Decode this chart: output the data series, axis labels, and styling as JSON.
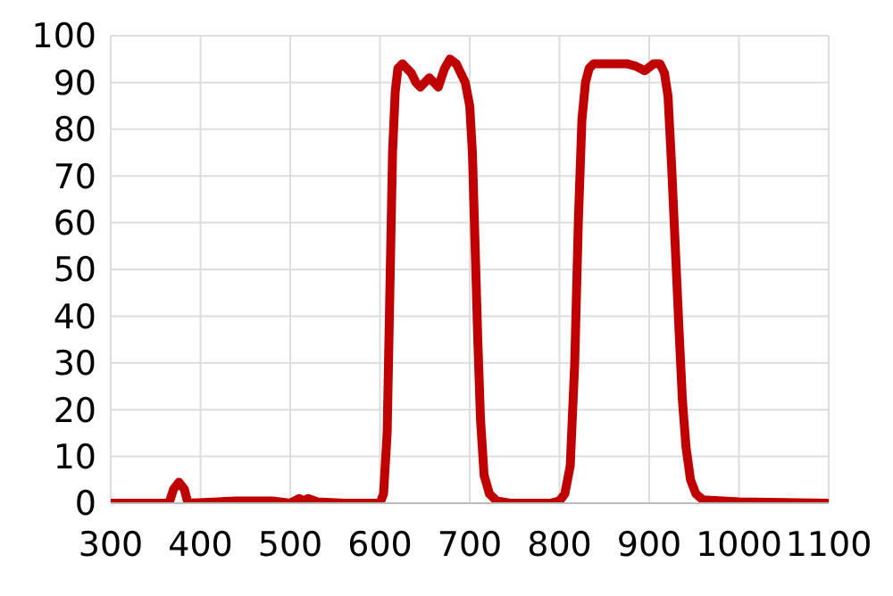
{
  "chart_data": {
    "type": "line",
    "x": [
      300,
      365,
      370,
      376,
      382,
      386,
      420,
      440,
      460,
      480,
      500,
      510,
      515,
      520,
      530,
      560,
      600,
      604,
      608,
      611,
      614,
      617,
      620,
      625,
      635,
      640,
      645,
      650,
      655,
      665,
      672,
      678,
      685,
      690,
      695,
      700,
      703,
      706,
      709,
      712,
      716,
      722,
      730,
      745,
      790,
      800,
      806,
      812,
      817,
      821,
      825,
      829,
      833,
      838,
      845,
      860,
      875,
      885,
      895,
      905,
      912,
      917,
      921,
      925,
      929,
      933,
      937,
      941,
      946,
      952,
      960,
      1000,
      1100
    ],
    "series": [
      {
        "color": "#c00000",
        "values": [
          0,
          0,
          3,
          4.5,
          3,
          0,
          0.3,
          0.5,
          0.5,
          0.5,
          0,
          1,
          0.5,
          1,
          0.3,
          0,
          0,
          2,
          15,
          45,
          75,
          88,
          93,
          94,
          92,
          90,
          89,
          90,
          91,
          89,
          93,
          95,
          94,
          92,
          90,
          85,
          75,
          55,
          35,
          18,
          6,
          2,
          0.5,
          0,
          0,
          0.5,
          2,
          8,
          30,
          60,
          82,
          90,
          93,
          94,
          94,
          94,
          94,
          93.5,
          92.5,
          94,
          94,
          92,
          87,
          72,
          55,
          38,
          22,
          12,
          5,
          2,
          0.7,
          0.3,
          0
        ]
      }
    ],
    "xlim": [
      300,
      1100
    ],
    "xticks": [
      300,
      400,
      500,
      600,
      700,
      800,
      900,
      1000,
      1100
    ],
    "ylim": [
      0,
      100
    ],
    "yticks": [
      0,
      10,
      20,
      30,
      40,
      50,
      60,
      70,
      80,
      90,
      100
    ],
    "grid": true,
    "marker": "none",
    "line_style": "solid"
  }
}
